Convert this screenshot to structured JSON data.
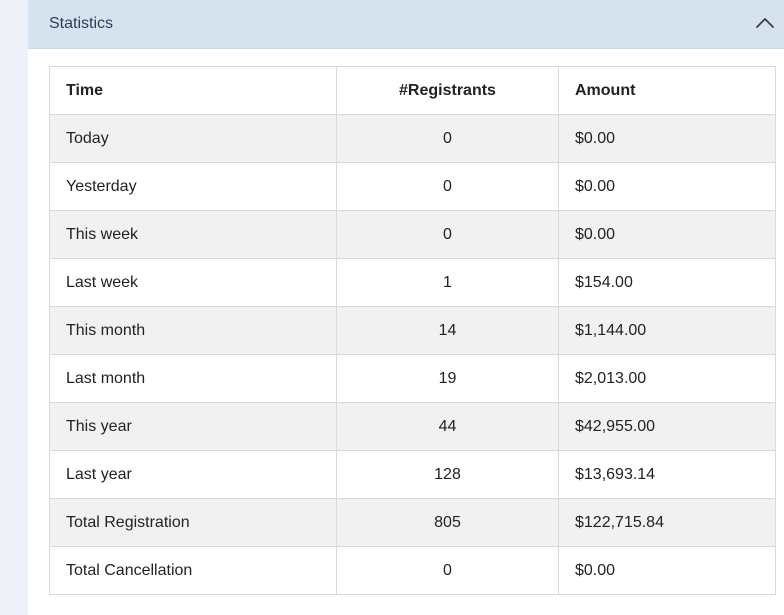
{
  "panel": {
    "title": "Statistics"
  },
  "table": {
    "headers": [
      "Time",
      "#Registrants",
      "Amount"
    ],
    "rows": [
      [
        "Today",
        "0",
        "$0.00"
      ],
      [
        "Yesterday",
        "0",
        "$0.00"
      ],
      [
        "This week",
        "0",
        "$0.00"
      ],
      [
        "Last week",
        "1",
        "$154.00"
      ],
      [
        "This month",
        "14",
        "$1,144.00"
      ],
      [
        "Last month",
        "19",
        "$2,013.00"
      ],
      [
        "This year",
        "44",
        "$42,955.00"
      ],
      [
        "Last year",
        "128",
        "$13,693.14"
      ],
      [
        "Total Registration",
        "805",
        "$122,715.84"
      ],
      [
        "Total Cancellation",
        "0",
        "$0.00"
      ]
    ]
  },
  "icons": {
    "collapse": "chevron-up-icon"
  },
  "colors": {
    "header_bg": "#d7e2ef",
    "stripe_bg": "#f1f1f1",
    "border": "#d9d9d9"
  }
}
